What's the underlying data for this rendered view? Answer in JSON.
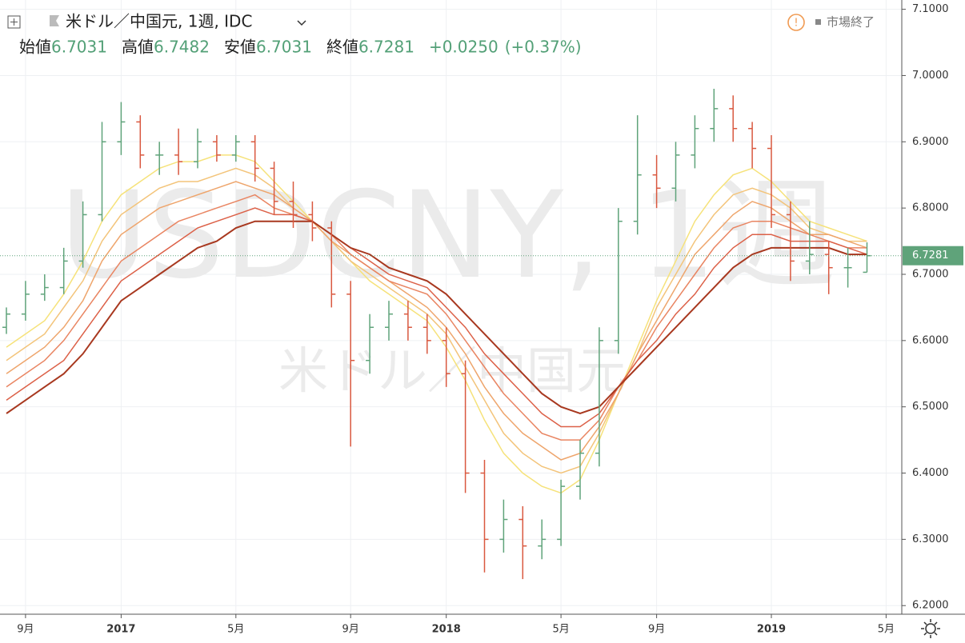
{
  "header": {
    "symbol": "米ドル／中国元, 1週, IDC",
    "fields": [
      {
        "label": "始値",
        "value": "6.7031"
      },
      {
        "label": "高値",
        "value": "6.7482"
      },
      {
        "label": "安値",
        "value": "6.7031"
      },
      {
        "label": "終値",
        "value": "6.7281"
      }
    ],
    "change": "+0.0250",
    "change_pct": "(+0.37%)",
    "status": "市場終了"
  },
  "watermark": {
    "main": "USDCNY, 1週",
    "sub": "米ドル／中国元"
  },
  "chart_data": {
    "type": "ohlc",
    "categories": [
      null,
      "9月",
      null,
      null,
      null,
      null,
      "2017",
      null,
      null,
      null,
      null,
      null,
      "5月",
      null,
      null,
      null,
      null,
      null,
      "9月",
      null,
      null,
      null,
      null,
      "2018",
      null,
      null,
      null,
      null,
      null,
      "5月",
      null,
      null,
      null,
      null,
      "9月",
      null,
      null,
      null,
      null,
      null,
      "2019",
      null,
      null,
      null,
      null,
      null,
      "5月"
    ],
    "open": [
      6.62,
      6.64,
      6.67,
      6.68,
      6.72,
      6.79,
      6.9,
      6.93,
      6.88,
      6.88,
      6.87,
      6.9,
      6.88,
      6.9,
      6.86,
      6.81,
      6.79,
      6.77,
      6.67,
      6.57,
      6.62,
      6.64,
      6.62,
      6.6,
      6.55,
      6.4,
      6.3,
      6.33,
      6.29,
      6.3,
      6.38,
      6.43,
      6.6,
      6.78,
      6.85,
      6.83,
      6.88,
      6.92,
      6.95,
      6.92,
      6.89,
      6.79,
      6.72,
      6.73,
      6.71,
      6.7031,
      null
    ],
    "high": [
      6.65,
      6.69,
      6.7,
      6.74,
      6.81,
      6.93,
      6.96,
      6.94,
      6.9,
      6.92,
      6.92,
      6.91,
      6.91,
      6.91,
      6.87,
      6.84,
      6.81,
      6.78,
      6.69,
      6.64,
      6.66,
      6.66,
      6.64,
      6.62,
      6.57,
      6.42,
      6.36,
      6.35,
      6.33,
      6.39,
      6.45,
      6.62,
      6.8,
      6.94,
      6.88,
      6.9,
      6.94,
      6.98,
      6.97,
      6.93,
      6.91,
      6.81,
      6.78,
      6.75,
      6.74,
      6.7482,
      null
    ],
    "low": [
      6.61,
      6.63,
      6.66,
      6.67,
      6.71,
      6.78,
      6.88,
      6.86,
      6.85,
      6.85,
      6.86,
      6.87,
      6.87,
      6.84,
      6.79,
      6.77,
      6.75,
      6.65,
      6.44,
      6.55,
      6.6,
      6.6,
      6.58,
      6.53,
      6.37,
      6.25,
      6.28,
      6.24,
      6.27,
      6.29,
      6.36,
      6.41,
      6.58,
      6.76,
      6.8,
      6.81,
      6.86,
      6.9,
      6.9,
      6.86,
      6.77,
      6.69,
      6.7,
      6.67,
      6.68,
      6.7031,
      null
    ],
    "close": [
      6.64,
      6.67,
      6.68,
      6.72,
      6.79,
      6.9,
      6.93,
      6.88,
      6.88,
      6.87,
      6.9,
      6.88,
      6.9,
      6.86,
      6.81,
      6.79,
      6.77,
      6.67,
      6.57,
      6.62,
      6.64,
      6.62,
      6.6,
      6.55,
      6.4,
      6.3,
      6.33,
      6.29,
      6.3,
      6.38,
      6.43,
      6.6,
      6.78,
      6.85,
      6.83,
      6.88,
      6.92,
      6.95,
      6.92,
      6.89,
      6.79,
      6.72,
      6.73,
      6.71,
      6.71,
      6.7281,
      null
    ],
    "up_color": "#5fa37a",
    "down_color": "#d9583f",
    "series": [
      {
        "color": "#f6e27a",
        "values": [
          6.59,
          6.61,
          6.63,
          6.67,
          6.72,
          6.78,
          6.82,
          6.84,
          6.86,
          6.87,
          6.87,
          6.88,
          6.88,
          6.87,
          6.84,
          6.81,
          6.78,
          6.75,
          6.72,
          6.69,
          6.67,
          6.65,
          6.63,
          6.59,
          6.54,
          6.48,
          6.43,
          6.4,
          6.38,
          6.37,
          6.39,
          6.45,
          6.52,
          6.59,
          6.66,
          6.72,
          6.78,
          6.82,
          6.85,
          6.86,
          6.84,
          6.81,
          6.78,
          6.77,
          6.76,
          6.75,
          null
        ]
      },
      {
        "color": "#f3c47a",
        "values": [
          6.57,
          6.59,
          6.61,
          6.65,
          6.69,
          6.75,
          6.79,
          6.81,
          6.83,
          6.84,
          6.84,
          6.85,
          6.86,
          6.85,
          6.83,
          6.8,
          6.78,
          6.75,
          6.72,
          6.7,
          6.68,
          6.66,
          6.64,
          6.61,
          6.56,
          6.51,
          6.46,
          6.43,
          6.41,
          6.4,
          6.41,
          6.46,
          6.52,
          6.58,
          6.65,
          6.7,
          6.75,
          6.79,
          6.82,
          6.83,
          6.82,
          6.8,
          6.77,
          6.76,
          6.75,
          6.75,
          null
        ]
      },
      {
        "color": "#eea56c",
        "values": [
          6.55,
          6.57,
          6.59,
          6.62,
          6.66,
          6.72,
          6.76,
          6.78,
          6.8,
          6.81,
          6.82,
          6.83,
          6.84,
          6.83,
          6.82,
          6.8,
          6.78,
          6.75,
          6.73,
          6.71,
          6.69,
          6.67,
          6.65,
          6.62,
          6.58,
          6.53,
          6.49,
          6.46,
          6.44,
          6.42,
          6.43,
          6.47,
          6.52,
          6.58,
          6.63,
          6.68,
          6.73,
          6.76,
          6.79,
          6.81,
          6.8,
          6.78,
          6.76,
          6.76,
          6.75,
          6.74,
          null
        ]
      },
      {
        "color": "#e98562",
        "values": [
          6.53,
          6.55,
          6.57,
          6.6,
          6.64,
          6.68,
          6.72,
          6.74,
          6.76,
          6.78,
          6.79,
          6.8,
          6.81,
          6.82,
          6.8,
          6.79,
          6.78,
          6.76,
          6.73,
          6.71,
          6.69,
          6.68,
          6.67,
          6.64,
          6.6,
          6.56,
          6.52,
          6.49,
          6.46,
          6.45,
          6.45,
          6.48,
          6.53,
          6.57,
          6.62,
          6.66,
          6.7,
          6.74,
          6.77,
          6.78,
          6.78,
          6.77,
          6.76,
          6.75,
          6.74,
          6.74,
          null
        ]
      },
      {
        "color": "#dc6148",
        "values": [
          6.51,
          6.53,
          6.55,
          6.57,
          6.61,
          6.65,
          6.69,
          6.71,
          6.73,
          6.75,
          6.77,
          6.78,
          6.79,
          6.8,
          6.79,
          6.79,
          6.78,
          6.76,
          6.74,
          6.72,
          6.7,
          6.69,
          6.68,
          6.65,
          6.62,
          6.58,
          6.55,
          6.52,
          6.49,
          6.47,
          6.47,
          6.49,
          6.53,
          6.57,
          6.6,
          6.64,
          6.67,
          6.71,
          6.74,
          6.76,
          6.76,
          6.75,
          6.75,
          6.75,
          6.74,
          6.73,
          null
        ]
      },
      {
        "color": "#a8381f",
        "values": [
          6.49,
          6.51,
          6.53,
          6.55,
          6.58,
          6.62,
          6.66,
          6.68,
          6.7,
          6.72,
          6.74,
          6.75,
          6.77,
          6.78,
          6.78,
          6.78,
          6.78,
          6.76,
          6.74,
          6.73,
          6.71,
          6.7,
          6.69,
          6.67,
          6.64,
          6.61,
          6.58,
          6.55,
          6.52,
          6.5,
          6.49,
          6.5,
          6.53,
          6.56,
          6.59,
          6.62,
          6.65,
          6.68,
          6.71,
          6.73,
          6.74,
          6.74,
          6.74,
          6.74,
          6.73,
          6.73,
          null
        ]
      }
    ],
    "ylim": [
      6.187,
      7.114
    ],
    "yticks": [
      {
        "value": 6.2,
        "label": "6.2000"
      },
      {
        "value": 6.3,
        "label": "6.3000"
      },
      {
        "value": 6.4,
        "label": "6.4000"
      },
      {
        "value": 6.5,
        "label": "6.5000"
      },
      {
        "value": 6.6,
        "label": "6.6000"
      },
      {
        "value": 6.7,
        "label": "6.7000"
      },
      {
        "value": 6.8,
        "label": "6.8000"
      },
      {
        "value": 6.9,
        "label": "6.9000"
      },
      {
        "value": 7.0,
        "label": "7.0000"
      },
      {
        "value": 7.1,
        "label": "7.1000"
      }
    ],
    "grid": true
  }
}
